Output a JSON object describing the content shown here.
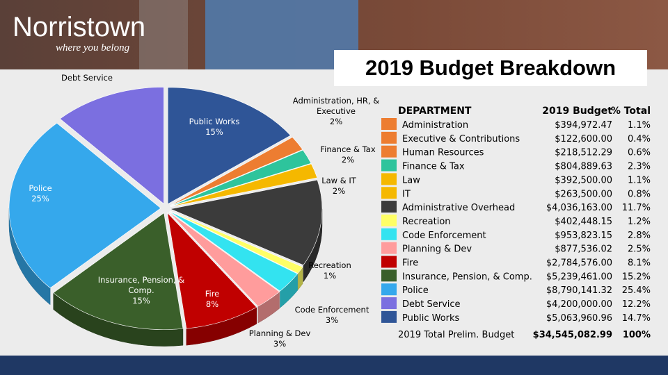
{
  "header": {
    "logo": "Norristown",
    "tagline": "where you belong",
    "title": "2019 Budget Breakdown"
  },
  "chart_data": {
    "type": "pie",
    "categories": [
      "Public Works",
      "Administration, HR, & Executive",
      "Finance & Tax",
      "Law & IT",
      null,
      "Recreation",
      "Code Enforcement",
      "Planning & Dev",
      "Fire",
      "Insurance, Pension, & Comp.",
      "Police",
      "Debt Service"
    ],
    "values": [
      15,
      2,
      2,
      2,
      12,
      1,
      3,
      3,
      8,
      15,
      25,
      12
    ],
    "value_labels": [
      "15%",
      "2%",
      "2%",
      "2%",
      null,
      "1%",
      "3%",
      "3%",
      "8%",
      "15%",
      "25%",
      null
    ],
    "colors": [
      "#2f5597",
      "#ed7d31",
      "#2ec49c",
      "#f5b800",
      "#3b3b3b",
      "#ffff66",
      "#33e3f0",
      "#ff9c9c",
      "#c00000",
      "#3a5f2a",
      "#35a8ec",
      "#7b6fe0"
    ]
  },
  "table": {
    "header": [
      "DEPARTMENT",
      "2019 Budget",
      "% Total"
    ],
    "rows": [
      {
        "color": "#ed7d31",
        "cells": [
          "Administration",
          "$394,972.47",
          "1.1%"
        ]
      },
      {
        "color": "#ed7d31",
        "cells": [
          "Executive & Contributions",
          "$122,600.00",
          "0.4%"
        ]
      },
      {
        "color": "#ed7d31",
        "cells": [
          "Human Resources",
          "$218,512.29",
          "0.6%"
        ]
      },
      {
        "color": "#2ec49c",
        "cells": [
          "Finance & Tax",
          "$804,889.63",
          "2.3%"
        ]
      },
      {
        "color": "#f5b800",
        "cells": [
          "Law",
          "$392,500.00",
          "1.1%"
        ]
      },
      {
        "color": "#f5b800",
        "cells": [
          "IT",
          "$263,500.00",
          "0.8%"
        ]
      },
      {
        "color": "#3b3b3b",
        "cells": [
          "Administrative Overhead",
          "$4,036,163.00",
          "11.7%"
        ]
      },
      {
        "color": "#ffff66",
        "cells": [
          "Recreation",
          "$402,448.15",
          "1.2%"
        ]
      },
      {
        "color": "#33e3f0",
        "cells": [
          "Code Enforcement",
          "$953,823.15",
          "2.8%"
        ]
      },
      {
        "color": "#ff9c9c",
        "cells": [
          "Planning & Dev",
          "$877,536.02",
          "2.5%"
        ]
      },
      {
        "color": "#c00000",
        "cells": [
          "Fire",
          "$2,784,576.00",
          "8.1%"
        ]
      },
      {
        "color": "#3a5f2a",
        "cells": [
          "Insurance, Pension, & Comp.",
          "$5,239,461.00",
          "15.2%"
        ]
      },
      {
        "color": "#35a8ec",
        "cells": [
          "Police",
          "$8,790,141.32",
          "25.4%"
        ]
      },
      {
        "color": "#7b6fe0",
        "cells": [
          "Debt Service",
          "$4,200,000.00",
          "12.2%"
        ]
      },
      {
        "color": "#2f5597",
        "cells": [
          "Public Works",
          "$5,063,960.96",
          "14.7%"
        ]
      }
    ],
    "footer": [
      "2019 Total Prelim. Budget",
      "$34,545,082.99",
      "100%"
    ]
  }
}
